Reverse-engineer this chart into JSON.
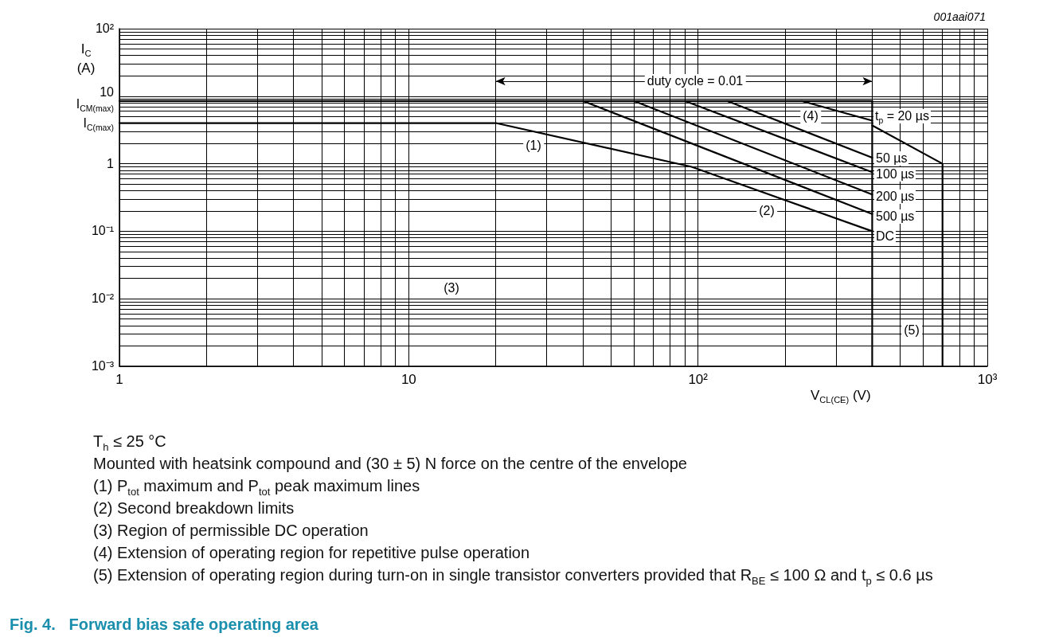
{
  "chart_data": {
    "type": "line",
    "title": "Fig. 4.   Forward bias safe operating area",
    "xlabel": "V$_{CL(CE)}$ (V)",
    "ylabel": "I$_{C}$ (A)",
    "log": "xy",
    "grid": true,
    "marker": "none",
    "line_style": "solid",
    "xlim": [
      1,
      1000
    ],
    "ylim": [
      0.001,
      100
    ],
    "xticks": [
      1,
      {
        "value": 2,
        "label": null
      },
      {
        "value": 3,
        "label": null
      },
      {
        "value": 4,
        "label": null
      },
      {
        "value": 5,
        "label": null
      },
      {
        "value": 6,
        "label": null
      },
      {
        "value": 7,
        "label": null
      },
      {
        "value": 8,
        "label": null
      },
      {
        "value": 9,
        "label": null
      },
      10,
      {
        "value": 20,
        "label": null
      },
      {
        "value": 30,
        "label": null
      },
      {
        "value": 40,
        "label": null
      },
      {
        "value": 50,
        "label": null
      },
      {
        "value": 60,
        "label": null
      },
      {
        "value": 70,
        "label": null
      },
      {
        "value": 80,
        "label": null
      },
      {
        "value": 90,
        "label": null
      },
      {
        "value": 100,
        "label": "10²"
      },
      {
        "value": 200,
        "label": null
      },
      {
        "value": 300,
        "label": null
      },
      {
        "value": 400,
        "label": null
      },
      {
        "value": 500,
        "label": null
      },
      {
        "value": 600,
        "label": null
      },
      {
        "value": 700,
        "label": null
      },
      {
        "value": 800,
        "label": null
      },
      {
        "value": 900,
        "label": null
      },
      {
        "value": 1000,
        "label": "10³"
      }
    ],
    "yticks": [
      {
        "value": 0.001,
        "label": "10⁻³"
      },
      {
        "value": 0.002,
        "label": null
      },
      {
        "value": 0.003,
        "label": null
      },
      {
        "value": 0.004,
        "label": null
      },
      {
        "value": 0.005,
        "label": null
      },
      {
        "value": 0.006,
        "label": null
      },
      {
        "value": 0.007,
        "label": null
      },
      {
        "value": 0.008,
        "label": null
      },
      {
        "value": 0.009,
        "label": null
      },
      {
        "value": 0.01,
        "label": "10⁻²"
      },
      {
        "value": 0.02,
        "label": null
      },
      {
        "value": 0.03,
        "label": null
      },
      {
        "value": 0.04,
        "label": null
      },
      {
        "value": 0.05,
        "label": null
      },
      {
        "value": 0.06,
        "label": null
      },
      {
        "value": 0.07,
        "label": null
      },
      {
        "value": 0.08,
        "label": null
      },
      {
        "value": 0.09,
        "label": null
      },
      {
        "value": 0.1,
        "label": "10⁻¹"
      },
      {
        "value": 0.2,
        "label": null
      },
      {
        "value": 0.3,
        "label": null
      },
      {
        "value": 0.4,
        "label": null
      },
      {
        "value": 0.5,
        "label": null
      },
      {
        "value": 0.6,
        "label": null
      },
      {
        "value": 0.7,
        "label": null
      },
      {
        "value": 0.8,
        "label": null
      },
      {
        "value": 0.9,
        "label": null
      },
      1,
      {
        "value": 2,
        "label": null
      },
      {
        "value": 3,
        "label": null
      },
      {
        "value": 4,
        "label": "I$_{C(max)}$"
      },
      {
        "value": 5,
        "label": null
      },
      {
        "value": 6,
        "label": null
      },
      {
        "value": 7,
        "label": null
      },
      {
        "value": 8,
        "label": null
      },
      {
        "value": 8.5,
        "label": "I$_{CM(max)}$"
      },
      {
        "value": 9,
        "label": null
      },
      10,
      {
        "value": 20,
        "label": null
      },
      {
        "value": 30,
        "label": null
      },
      {
        "value": 40,
        "label": null
      },
      {
        "value": 50,
        "label": null
      },
      {
        "value": 60,
        "label": null
      },
      {
        "value": 70,
        "label": null
      },
      {
        "value": 80,
        "label": null
      },
      {
        "value": 90,
        "label": null
      },
      {
        "value": 100,
        "label": "10²"
      }
    ],
    "series": [
      {
        "color": "#000000",
        "x": [
          1,
          400
        ],
        "values": [
          8.5,
          8.5
        ]
      },
      {
        "color": "#000000",
        "x": [
          1,
          20,
          95,
          400
        ],
        "values": [
          4,
          4,
          0.9,
          0.1
        ]
      },
      {
        "color": "#000000",
        "x": [
          400,
          400
        ],
        "values": [
          8.5,
          0.001
        ]
      },
      {
        "color": "#000000",
        "x": [
          400,
          700,
          700
        ],
        "values": [
          3.7,
          1,
          0.001
        ]
      },
      {
        "color": "#000000",
        "x": [
          228,
          400
        ],
        "values": [
          8.5,
          4.35
        ]
      },
      {
        "color": "#000000",
        "x": [
          126,
          400
        ],
        "values": [
          8.5,
          1.23
        ]
      },
      {
        "color": "#000000",
        "x": [
          90,
          400
        ],
        "values": [
          8.5,
          0.75
        ]
      },
      {
        "color": "#000000",
        "x": [
          60,
          400
        ],
        "values": [
          8.5,
          0.35
        ]
      },
      {
        "color": "#000000",
        "x": [
          40,
          400
        ],
        "values": [
          8.5,
          0.18
        ]
      }
    ],
    "annotations": [
      "001aai071",
      "duty cycle = 0.01",
      "(1)",
      "(2)",
      "(3)",
      "(4)",
      "(5)",
      "t$_{p}$ = 20 µs",
      "50 µs",
      "100 µs",
      "200 µs",
      "500 µs",
      "DC",
      "T$_{h}$ ≤ 25 °C",
      "Mounted with heatsink compound and (30 ± 5) N force on the centre of the envelope",
      "(1) P$_{tot}$ maximum and P$_{tot}$ peak maximum lines",
      "(2) Second breakdown limits",
      "(3) Region of permissible DC operation",
      "(4) Extension of operating region for repetitive pulse operation",
      "(5) Extension of operating region during turn-on in single transistor converters provided that R$_{BE}$ ≤ 100 Ω and t$_{p}$ ≤ 0.6 µs"
    ]
  }
}
